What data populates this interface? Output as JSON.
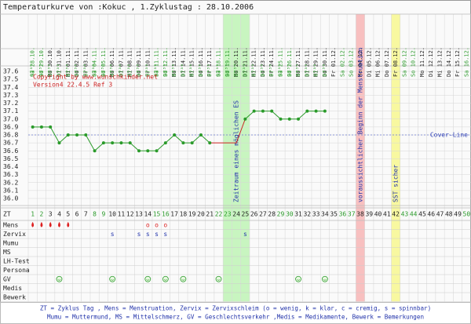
{
  "chart_data": {
    "type": "line",
    "title": "Temperaturkurve von :Kokuc , 1.Zyklustag : 28.10.2006",
    "copyright": "Copyright by www.wunschkinder.net",
    "version": "Version4 22.4.5 Ref 3",
    "zt_label": "ZT",
    "categories": [
      1,
      2,
      3,
      4,
      5,
      6,
      7,
      8,
      9,
      10,
      11,
      12,
      13,
      14,
      15,
      16,
      17,
      18,
      19,
      20,
      21,
      22,
      23,
      24,
      25,
      26,
      27,
      28,
      29,
      30,
      31,
      32,
      33,
      34,
      35,
      36,
      37,
      38,
      39,
      40,
      41,
      42,
      43,
      44,
      45,
      46,
      47,
      48,
      49,
      50
    ],
    "dates": [
      "Sa 28.10.",
      "So 29.10.",
      "Mo 30.10.",
      "Di 31.10.",
      "Mi 01.11.",
      "Do 02.11.",
      "Fr 03.11.",
      "Sa 04.11.",
      "So 05.11.",
      "Mo 06.11.",
      "Di 07.11.",
      "Mi 08.11.",
      "Do 09.11.",
      "Fr 10.11.",
      "Sa 11.11.",
      "So 12.11.",
      "Mo 13.11.",
      "Di 14.11.",
      "Mi 15.11.",
      "Do 16.11.",
      "Fr 17.11.",
      "Sa 18.11.",
      "So 19.11.",
      "Mo 20.11.",
      "Di 21.11.",
      "Mi 22.11.",
      "Do 23.11.",
      "Fr 24.11.",
      "Sa 25.11.",
      "So 26.11.",
      "Mo 27.11.",
      "Di 28.11.",
      "Mi 29.11.",
      "Do 30.11.",
      "Fr 01.12.",
      "Sa 02.12.",
      "So 03.12.",
      "Mo 04.12.",
      "Di 05.12.",
      "Mi 06.12.",
      "Do 07.12.",
      "Fr 08.12.",
      "Sa 09.12.",
      "So 10.12.",
      "Mo 11.12.",
      "Di 12.12.",
      "Mi 13.12.",
      "Do 14.12.",
      "Fr 15.12.",
      "Sa 16.12."
    ],
    "times": [
      "07³⁰",
      "07³⁰",
      "07³⁰",
      "07³⁰",
      "07³⁰",
      "07³⁰",
      "07³⁰",
      "07³⁰",
      "07³⁰",
      "07³⁰",
      "07³⁰",
      "07³⁰",
      "07³⁰",
      "07³⁰",
      "07³⁰",
      "07³⁰",
      "07³⁰",
      "07³⁰",
      "07³⁰",
      "07³⁰",
      "07³⁰",
      "07³⁰",
      "07³⁰",
      "07³⁰",
      "07³⁰",
      "07³⁰",
      "07³⁰",
      "07³⁰",
      "07³⁰",
      "07³⁰",
      "07³⁰",
      "07³⁰",
      "07³⁰",
      "07³⁰",
      null,
      null,
      null,
      null,
      null,
      null,
      null,
      null,
      null,
      null,
      null,
      null,
      null,
      null,
      null,
      null
    ],
    "values": [
      36.9,
      36.9,
      36.9,
      36.7,
      36.8,
      36.8,
      36.8,
      36.6,
      36.7,
      36.7,
      36.7,
      36.7,
      36.6,
      36.6,
      36.6,
      36.7,
      36.8,
      36.7,
      36.7,
      36.8,
      36.7,
      null,
      null,
      null,
      37.0,
      37.1,
      37.1,
      37.1,
      37.0,
      37.0,
      37.0,
      37.1,
      37.1,
      37.1,
      null,
      null,
      null,
      null,
      null,
      null,
      null,
      null,
      null,
      null,
      null,
      null,
      null,
      null,
      null,
      null
    ],
    "color": "#2a9a2a",
    "gap_color": "#cc2222",
    "ylim": [
      36.0,
      37.6
    ],
    "yticks": [
      {
        "value": 37.6,
        "label": "37.6"
      },
      {
        "value": 37.5,
        "label": "37.5"
      },
      {
        "value": 37.4,
        "label": "37.4"
      },
      {
        "value": 37.3,
        "label": "37.3"
      },
      {
        "value": 37.2,
        "label": "37.2"
      },
      {
        "value": 37.1,
        "label": "37.1"
      },
      {
        "value": 37,
        "label": "37.0"
      },
      {
        "value": 36.9,
        "label": "36.9"
      },
      {
        "value": 36.8,
        "label": "36.8"
      },
      {
        "value": 36.7,
        "label": "36.7"
      },
      {
        "value": 36.6,
        "label": "36.6"
      },
      {
        "value": 36.5,
        "label": "36.5"
      },
      {
        "value": 36.4,
        "label": "36.4"
      },
      {
        "value": 36.3,
        "label": "36.3"
      },
      {
        "value": 36.2,
        "label": "36.2"
      },
      {
        "value": 36.1,
        "label": "36.1"
      },
      {
        "value": 36,
        "label": "36.0"
      }
    ],
    "grid": true,
    "cover_line": {
      "value": 36.8,
      "label": "Cover-Line"
    },
    "bands": [
      {
        "from": 23,
        "to": 25,
        "color": "#c8f5c0",
        "label": "Zeitraum eines möglichen ES"
      },
      {
        "from": 38,
        "to": 38,
        "color": "#f8c0c0",
        "label": "voraussichtlicher Beginn der Menstruation"
      },
      {
        "from": 42,
        "to": 42,
        "color": "#f8f8a0",
        "label": "SST sicher"
      }
    ],
    "rows": [
      {
        "label": "Mens",
        "drop_days": [
          1,
          2,
          3,
          4,
          5
        ],
        "text_days": [
          14,
          15,
          16
        ],
        "text": "o"
      },
      {
        "label": "Zervix",
        "text_days": [
          10,
          13,
          14,
          15,
          16,
          25
        ],
        "text": "s"
      },
      {
        "label": "Mumu"
      },
      {
        "label": "MS"
      },
      {
        "label": "LH-Test"
      },
      {
        "label": "Persona"
      },
      {
        "label": "GV",
        "smiley_days": [
          4,
          10,
          14,
          16,
          18,
          22,
          31,
          34
        ]
      },
      {
        "label": "Medis"
      },
      {
        "label": "Bewerk"
      }
    ],
    "footer": [
      "ZT = Zyklus Tag , Mens = Menstruation, Zervix = Zervixschleim (o = wenig, k = klar, c = cremig, s = spinnbar)",
      "Mumu = Muttermund, MS = Mittelschmerz, GV = Geschlechtsverkehr ,Medis = Medikamente, Bewerk = Bemerkungen"
    ]
  }
}
